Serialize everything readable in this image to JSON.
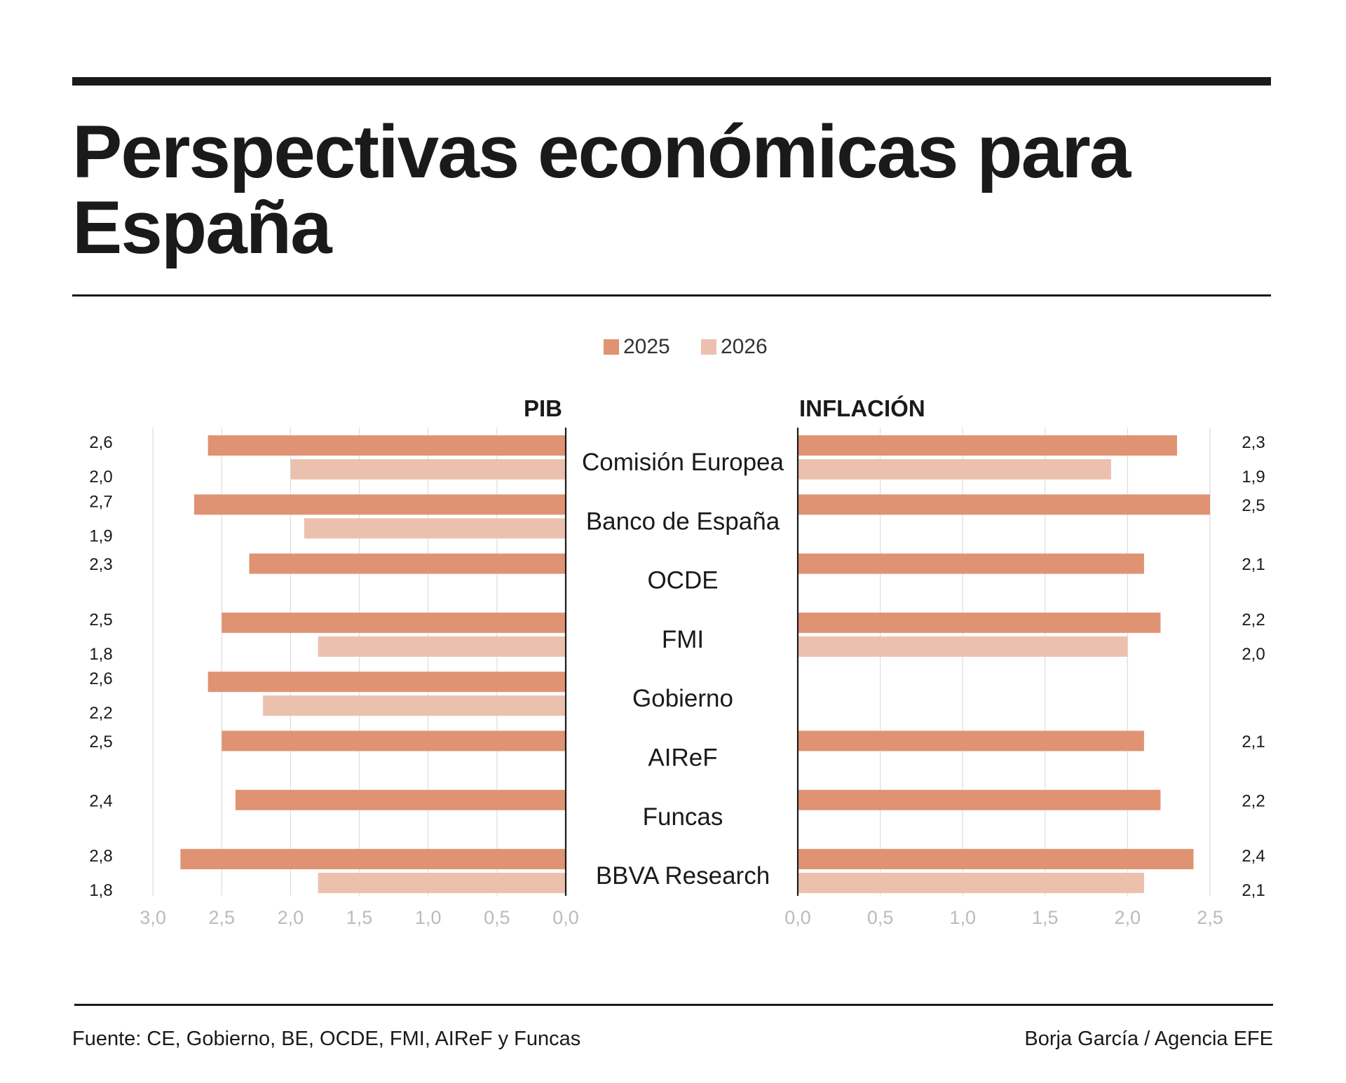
{
  "title": "Perspectivas económicas para España",
  "footer": {
    "source": "Fuente: CE, Gobierno, BE, OCDE, FMI, AIReF y Funcas",
    "credit": "Borja García / Agencia EFE"
  },
  "colors": {
    "series_2025": "#df9373",
    "series_2026": "#ebc1ae",
    "grid": "#dddddd",
    "axis": "#1a1a1a",
    "tick_label": "#bbbbbb"
  },
  "chart_data": {
    "type": "bar",
    "orientation": "horizontal",
    "layout": "butterfly",
    "legend": [
      {
        "name": "2025",
        "color_key": "series_2025"
      },
      {
        "name": "2026",
        "color_key": "series_2026"
      }
    ],
    "legend_position": "top-center",
    "grid": true,
    "categories": [
      "Comisión Europea",
      "Banco de España",
      "OCDE",
      "FMI",
      "Gobierno",
      "AIReF",
      "Funcas",
      "BBVA Research"
    ],
    "panels": [
      {
        "title": "PIB",
        "direction": "left",
        "xlim": [
          0,
          3.0
        ],
        "ticks": [
          "3,0",
          "2,5",
          "2,0",
          "1,5",
          "1,0",
          "0,5",
          "0,0"
        ],
        "series": [
          {
            "name": "2025",
            "values": [
              2.6,
              2.7,
              2.3,
              2.5,
              2.6,
              2.5,
              2.4,
              2.8
            ],
            "labels": [
              "2,6",
              "2,7",
              "2,3",
              "2,5",
              "2,6",
              "2,5",
              "2,4",
              "2,8"
            ]
          },
          {
            "name": "2026",
            "values": [
              2.0,
              1.9,
              null,
              1.8,
              2.2,
              null,
              null,
              1.8
            ],
            "labels": [
              "2,0",
              "1,9",
              null,
              "1,8",
              "2,2",
              null,
              null,
              "1,8"
            ]
          }
        ]
      },
      {
        "title": "INFLACIÓN",
        "direction": "right",
        "xlim": [
          0,
          2.5
        ],
        "ticks": [
          "0,0",
          "0,5",
          "1,0",
          "1,5",
          "2,0",
          "2,5"
        ],
        "series": [
          {
            "name": "2025",
            "values": [
              2.3,
              2.5,
              2.1,
              2.2,
              null,
              2.1,
              2.2,
              2.4
            ],
            "labels": [
              "2,3",
              "2,5",
              "2,1",
              "2,2",
              null,
              "2,1",
              "2,2",
              "2,4"
            ]
          },
          {
            "name": "2026",
            "values": [
              1.9,
              null,
              null,
              2.0,
              null,
              null,
              null,
              2.1
            ],
            "labels": [
              "1,9",
              null,
              null,
              "2,0",
              null,
              null,
              null,
              "2,1"
            ]
          }
        ]
      }
    ]
  }
}
